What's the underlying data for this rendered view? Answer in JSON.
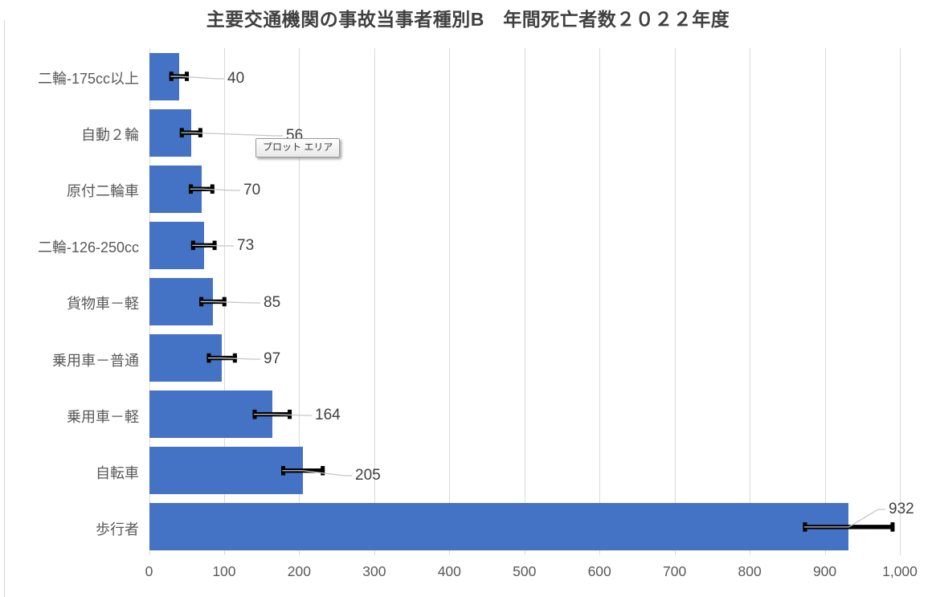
{
  "tooltip": {
    "text": "プロット エリア"
  },
  "chart_data": {
    "type": "bar",
    "orientation": "horizontal",
    "title": "主要交通機関の事故当事者種別B　年間死亡者数２０２２年度",
    "categories": [
      "二輪-175cc以上",
      "自動２輪",
      "原付二輪車",
      "二輪-126-250cc",
      "貨物車－軽",
      "乗用車－普通",
      "乗用車－軽",
      "自転車",
      "歩行者"
    ],
    "values": [
      40,
      56,
      70,
      73,
      85,
      97,
      164,
      205,
      932
    ],
    "errors": [
      13,
      15,
      17,
      17,
      18,
      20,
      26,
      29,
      61
    ],
    "data_labels": [
      "40",
      "56",
      "70",
      "73",
      "85",
      "97",
      "164",
      "205",
      "932"
    ],
    "x_tick_values": [
      0,
      100,
      200,
      300,
      400,
      500,
      600,
      700,
      800,
      900,
      1000
    ],
    "x_tick_labels": [
      "0",
      "100",
      "200",
      "300",
      "400",
      "500",
      "600",
      "700",
      "800",
      "900",
      "1,000"
    ],
    "xlim": [
      0,
      1000
    ],
    "grid": true,
    "legend": "none",
    "colors": {
      "bar": "#4472c4",
      "gridline": "#d9d9d9",
      "axis_text": "#595959",
      "data_label_text": "#404040",
      "title_text": "#404040",
      "error_bar": "#000000",
      "leader_line": "#c6c6c6"
    },
    "label_positions": [
      [
        283,
        98
      ],
      [
        356,
        169
      ],
      [
        303,
        237
      ],
      [
        295,
        306
      ],
      [
        328,
        377
      ],
      [
        328,
        447
      ],
      [
        392,
        517
      ],
      [
        442,
        592
      ],
      [
        1106,
        634
      ]
    ]
  }
}
